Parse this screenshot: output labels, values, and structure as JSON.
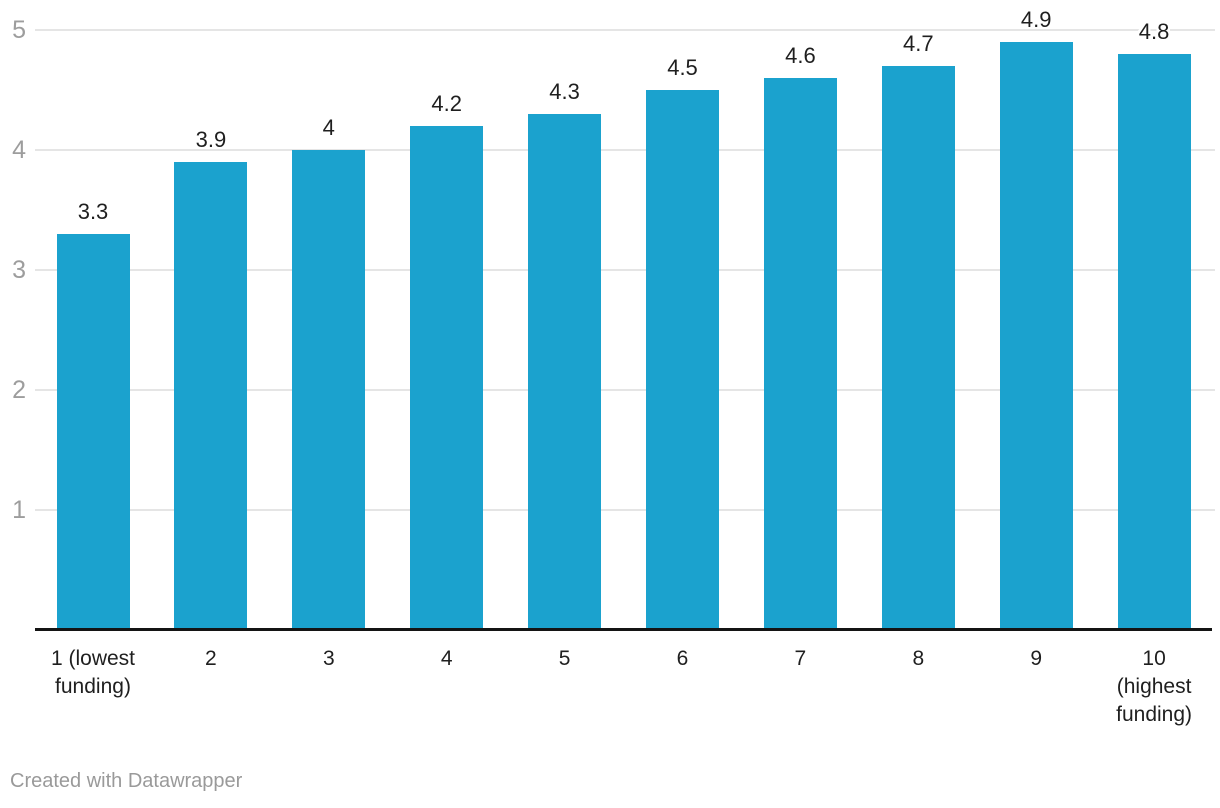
{
  "colors": {
    "background": "#ffffff",
    "bar": "#1ba2ce",
    "grid": "#e5e5e5",
    "axis_line": "#141414",
    "y_tick_label": "#9d9d9d",
    "value_label": "#1f1f1f",
    "x_tick_label": "#1f1f1f",
    "credit_text": "#9a9a9a"
  },
  "chart_data": {
    "type": "bar",
    "title": "",
    "xlabel": "",
    "ylabel": "",
    "categories": [
      "1 (lowest funding)",
      "2",
      "3",
      "4",
      "5",
      "6",
      "7",
      "8",
      "9",
      "10 (highest funding)"
    ],
    "category_lines": [
      [
        "1 (lowest",
        "funding)"
      ],
      [
        "2"
      ],
      [
        "3"
      ],
      [
        "4"
      ],
      [
        "5"
      ],
      [
        "6"
      ],
      [
        "7"
      ],
      [
        "8"
      ],
      [
        "9"
      ],
      [
        "10",
        "(highest",
        "funding)"
      ]
    ],
    "values": [
      3.3,
      3.9,
      4,
      4.2,
      4.3,
      4.5,
      4.6,
      4.7,
      4.9,
      4.8
    ],
    "value_labels": [
      "3.3",
      "3.9",
      "4",
      "4.2",
      "4.3",
      "4.5",
      "4.6",
      "4.7",
      "4.9",
      "4.8"
    ],
    "ylim": [
      0,
      5
    ],
    "yticks": [
      1,
      2,
      3,
      4,
      5
    ],
    "grid": true,
    "legend": "none"
  },
  "footer": {
    "credit_text": "Created with Datawrapper"
  }
}
